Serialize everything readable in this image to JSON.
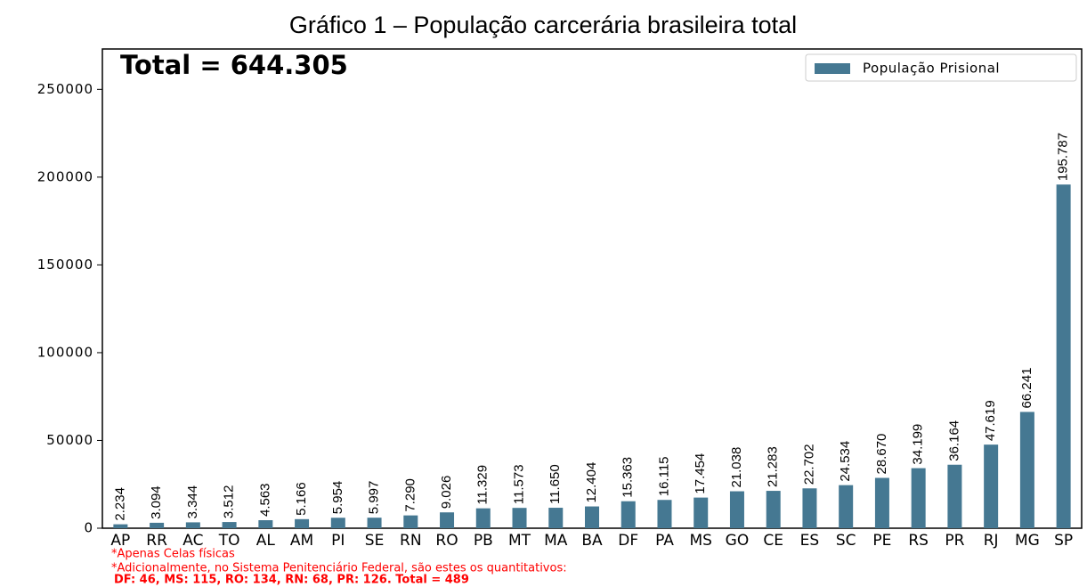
{
  "chart_data": {
    "type": "bar",
    "title": "Gráfico 1 – População carcerária brasileira total",
    "annotation": "Total = 644.305",
    "footnotes": [
      "*Apenas Celas físicas",
      "*Adicionalmente, no Sistema Penitenciário Federal, são estes os quantitativos:",
      "DF: 46, MS: 115, RO: 134, RN: 68, PR: 126. Total = 489"
    ],
    "categories": [
      "AP",
      "RR",
      "AC",
      "TO",
      "AL",
      "AM",
      "PI",
      "SE",
      "RN",
      "RO",
      "PB",
      "MT",
      "MA",
      "BA",
      "DF",
      "PA",
      "MS",
      "GO",
      "CE",
      "ES",
      "SC",
      "PE",
      "RS",
      "PR",
      "RJ",
      "MG",
      "SP"
    ],
    "series": [
      {
        "name": "População Prisional",
        "color": "#457892",
        "values": [
          2234,
          3094,
          3344,
          3512,
          4563,
          5166,
          5954,
          5997,
          7290,
          9026,
          11329,
          11573,
          11650,
          12404,
          15363,
          16115,
          17454,
          21038,
          21283,
          22702,
          24534,
          28670,
          34199,
          36164,
          47619,
          66241,
          195787
        ],
        "value_labels": [
          "2.234",
          "3.094",
          "3.344",
          "3.512",
          "4.563",
          "5.166",
          "5.954",
          "5.997",
          "7.290",
          "9.026",
          "11.329",
          "11.573",
          "11.650",
          "12.404",
          "15.363",
          "16.115",
          "17.454",
          "21.038",
          "21.283",
          "22.702",
          "24.534",
          "28.670",
          "34.199",
          "36.164",
          "47.619",
          "66.241",
          "195.787"
        ]
      }
    ],
    "ylim": [
      0,
      273000
    ],
    "yticks": [
      0,
      50000,
      100000,
      150000,
      200000,
      250000
    ],
    "legend": "upper right"
  }
}
